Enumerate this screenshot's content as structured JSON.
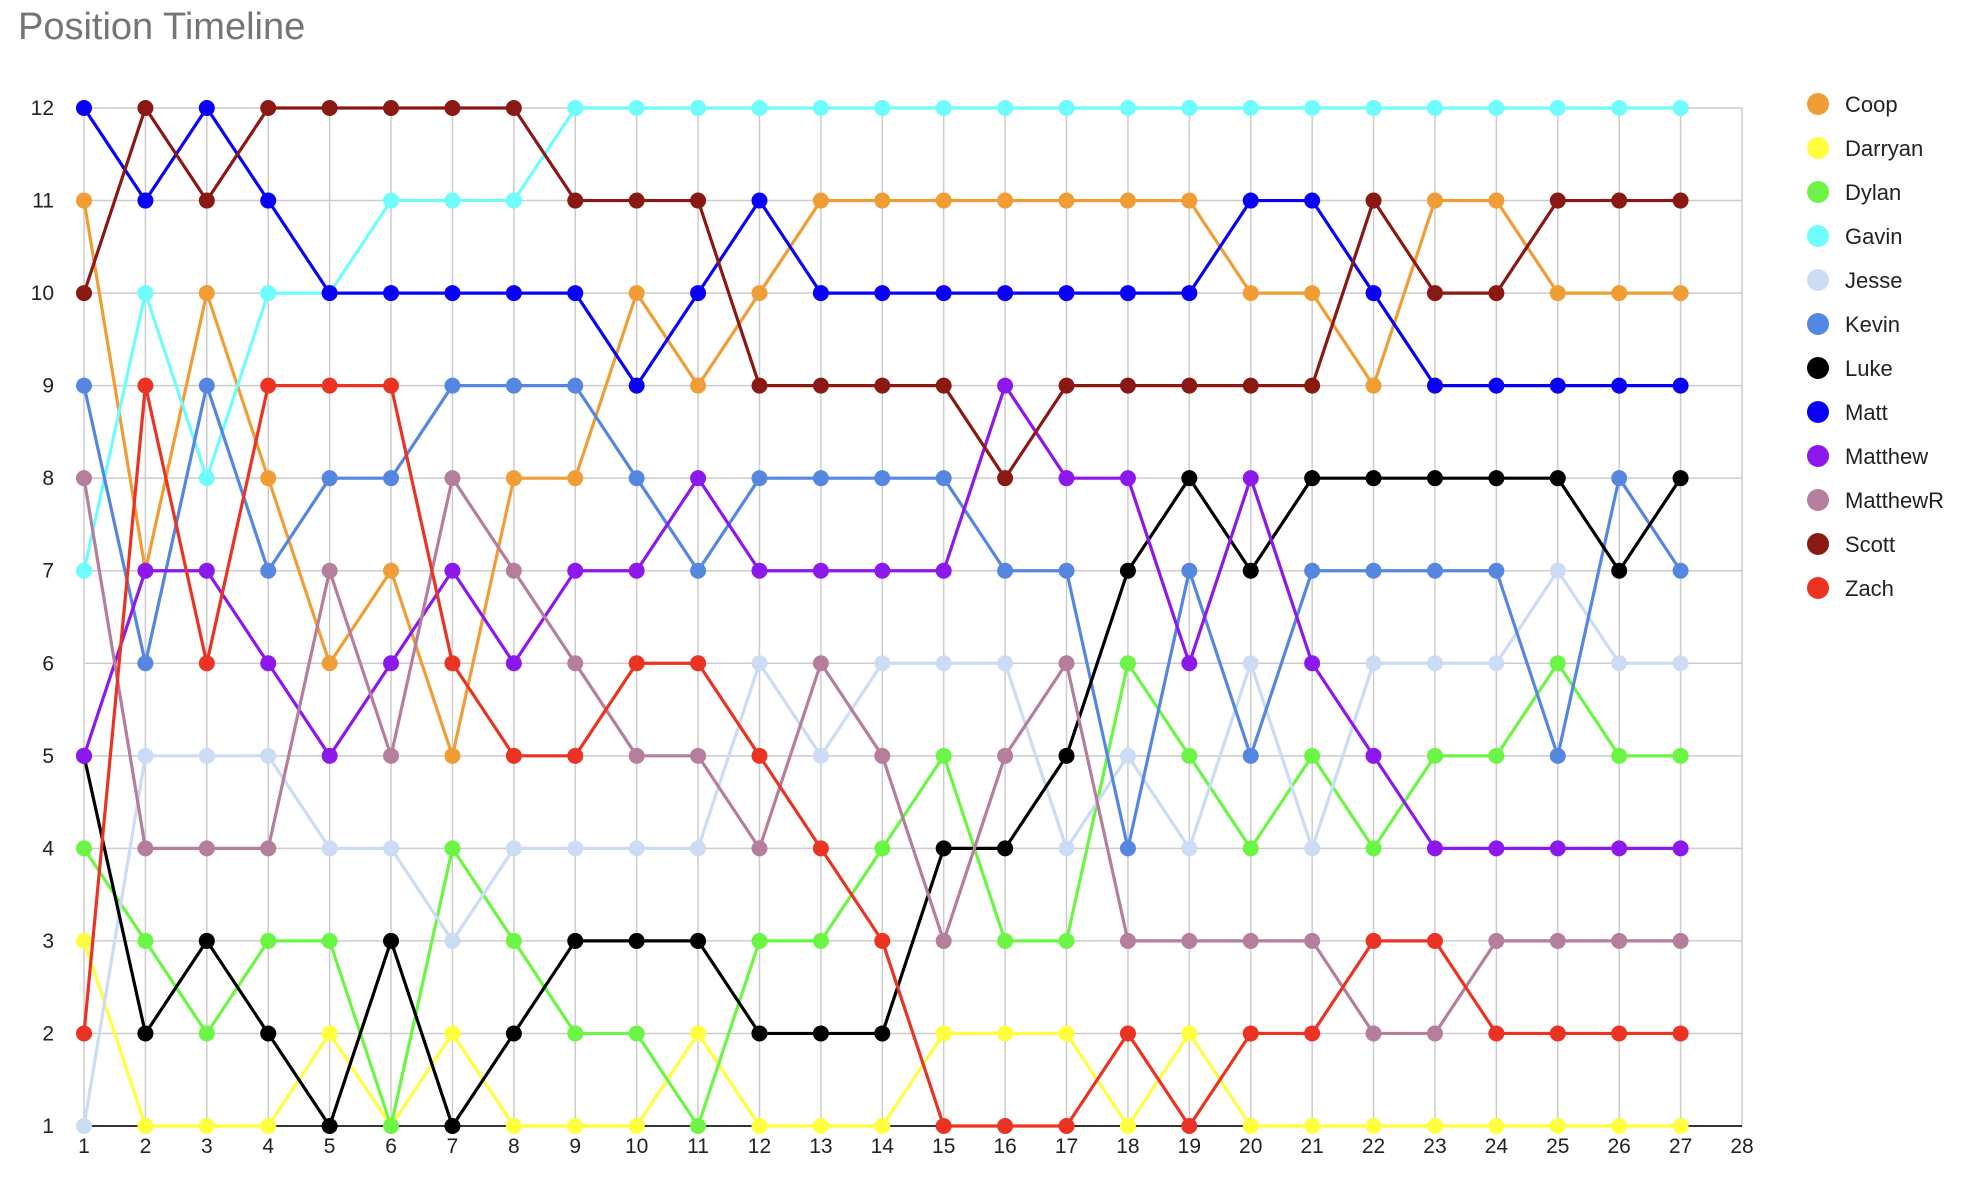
{
  "chart_data": {
    "type": "line",
    "title": "Position Timeline",
    "xlabel": "",
    "ylabel": "",
    "xlim": [
      1,
      28
    ],
    "ylim": [
      1,
      12
    ],
    "x_ticks": [
      1,
      2,
      3,
      4,
      5,
      6,
      7,
      8,
      9,
      10,
      11,
      12,
      13,
      14,
      15,
      16,
      17,
      18,
      19,
      20,
      21,
      22,
      23,
      24,
      25,
      26,
      27,
      28
    ],
    "y_ticks": [
      1,
      2,
      3,
      4,
      5,
      6,
      7,
      8,
      9,
      10,
      11,
      12
    ],
    "grid": true,
    "legend_position": "right",
    "x": [
      1,
      2,
      3,
      4,
      5,
      6,
      7,
      8,
      9,
      10,
      11,
      12,
      13,
      14,
      15,
      16,
      17,
      18,
      19,
      20,
      21,
      22,
      23,
      24,
      25,
      26,
      27
    ],
    "series": [
      {
        "name": "Coop",
        "color": "#F09D35",
        "values": [
          11,
          7,
          10,
          8,
          6,
          7,
          5,
          8,
          8,
          10,
          9,
          10,
          11,
          11,
          11,
          11,
          11,
          11,
          11,
          10,
          10,
          9,
          11,
          11,
          10,
          10,
          10
        ]
      },
      {
        "name": "Darryan",
        "color": "#FFFF40",
        "values": [
          3,
          1,
          1,
          1,
          2,
          1,
          2,
          1,
          1,
          1,
          2,
          1,
          1,
          1,
          2,
          2,
          2,
          1,
          2,
          1,
          1,
          1,
          1,
          1,
          1,
          1,
          1
        ]
      },
      {
        "name": "Dylan",
        "color": "#6BF545",
        "values": [
          4,
          3,
          2,
          3,
          3,
          1,
          4,
          3,
          2,
          2,
          1,
          3,
          3,
          4,
          5,
          3,
          3,
          6,
          5,
          4,
          5,
          4,
          5,
          5,
          6,
          5,
          5
        ]
      },
      {
        "name": "Gavin",
        "color": "#6EFCFC",
        "values": [
          7,
          10,
          8,
          10,
          10,
          11,
          11,
          11,
          12,
          12,
          12,
          12,
          12,
          12,
          12,
          12,
          12,
          12,
          12,
          12,
          12,
          12,
          12,
          12,
          12,
          12,
          12
        ]
      },
      {
        "name": "Jesse",
        "color": "#CCDCF5",
        "values": [
          1,
          5,
          5,
          5,
          4,
          4,
          3,
          4,
          4,
          4,
          4,
          6,
          5,
          6,
          6,
          6,
          4,
          5,
          4,
          6,
          4,
          6,
          6,
          6,
          7,
          6,
          6
        ]
      },
      {
        "name": "Kevin",
        "color": "#5687E0",
        "values": [
          9,
          6,
          9,
          7,
          8,
          8,
          9,
          9,
          9,
          8,
          7,
          8,
          8,
          8,
          8,
          7,
          7,
          4,
          7,
          5,
          7,
          7,
          7,
          7,
          5,
          8,
          7
        ]
      },
      {
        "name": "Luke",
        "color": "#000000",
        "values": [
          5,
          2,
          3,
          2,
          1,
          3,
          1,
          2,
          3,
          3,
          3,
          2,
          2,
          2,
          4,
          4,
          5,
          7,
          8,
          7,
          8,
          8,
          8,
          8,
          8,
          7,
          8
        ]
      },
      {
        "name": "Matt",
        "color": "#0A00F5",
        "values": [
          12,
          11,
          12,
          11,
          10,
          10,
          10,
          10,
          10,
          9,
          10,
          11,
          10,
          10,
          10,
          10,
          10,
          10,
          10,
          11,
          11,
          10,
          9,
          9,
          9,
          9,
          9
        ]
      },
      {
        "name": "Matthew",
        "color": "#8D18EB",
        "values": [
          5,
          7,
          7,
          6,
          5,
          6,
          7,
          6,
          7,
          7,
          8,
          7,
          7,
          7,
          7,
          9,
          8,
          8,
          6,
          8,
          6,
          5,
          4,
          4,
          4,
          4,
          4
        ]
      },
      {
        "name": "MatthewR",
        "color": "#B47E9C",
        "values": [
          8,
          4,
          4,
          4,
          7,
          5,
          8,
          7,
          6,
          5,
          5,
          4,
          6,
          5,
          3,
          5,
          6,
          3,
          3,
          3,
          3,
          2,
          2,
          3,
          3,
          3,
          3
        ]
      },
      {
        "name": "Scott",
        "color": "#8A1813",
        "values": [
          10,
          12,
          11,
          12,
          12,
          12,
          12,
          12,
          11,
          11,
          11,
          9,
          9,
          9,
          9,
          8,
          9,
          9,
          9,
          9,
          9,
          11,
          10,
          10,
          11,
          11,
          11
        ]
      },
      {
        "name": "Zach",
        "color": "#EA3323",
        "values": [
          2,
          9,
          6,
          9,
          9,
          9,
          6,
          5,
          5,
          6,
          6,
          5,
          4,
          3,
          1,
          1,
          1,
          2,
          1,
          2,
          2,
          3,
          3,
          2,
          2,
          2,
          2
        ]
      }
    ]
  }
}
